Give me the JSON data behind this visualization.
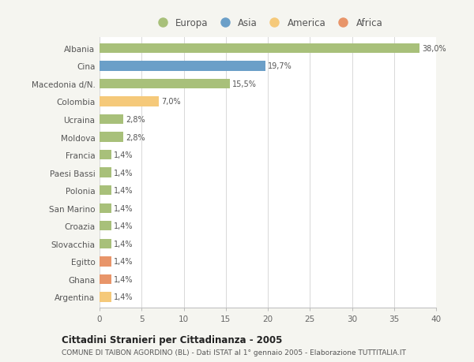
{
  "categories": [
    "Albania",
    "Cina",
    "Macedonia d/N.",
    "Colombia",
    "Ucraina",
    "Moldova",
    "Francia",
    "Paesi Bassi",
    "Polonia",
    "San Marino",
    "Croazia",
    "Slovacchia",
    "Egitto",
    "Ghana",
    "Argentina"
  ],
  "values": [
    38.0,
    19.7,
    15.5,
    7.0,
    2.8,
    2.8,
    1.4,
    1.4,
    1.4,
    1.4,
    1.4,
    1.4,
    1.4,
    1.4,
    1.4
  ],
  "labels": [
    "38,0%",
    "19,7%",
    "15,5%",
    "7,0%",
    "2,8%",
    "2,8%",
    "1,4%",
    "1,4%",
    "1,4%",
    "1,4%",
    "1,4%",
    "1,4%",
    "1,4%",
    "1,4%",
    "1,4%"
  ],
  "colors": [
    "#a8c07a",
    "#6b9fc8",
    "#a8c07a",
    "#f5c97a",
    "#a8c07a",
    "#a8c07a",
    "#a8c07a",
    "#a8c07a",
    "#a8c07a",
    "#a8c07a",
    "#a8c07a",
    "#a8c07a",
    "#e8956a",
    "#e8956a",
    "#f5c97a"
  ],
  "legend_labels": [
    "Europa",
    "Asia",
    "America",
    "Africa"
  ],
  "legend_colors": [
    "#a8c07a",
    "#6b9fc8",
    "#f5c97a",
    "#e8956a"
  ],
  "title": "Cittadini Stranieri per Cittadinanza - 2005",
  "subtitle": "COMUNE DI TAIBON AGORDINO (BL) - Dati ISTAT al 1° gennaio 2005 - Elaborazione TUTTITALIA.IT",
  "xlim": [
    0,
    40
  ],
  "xticks": [
    0,
    5,
    10,
    15,
    20,
    25,
    30,
    35,
    40
  ],
  "background_color": "#f5f5f0",
  "plot_bg_color": "#ffffff"
}
